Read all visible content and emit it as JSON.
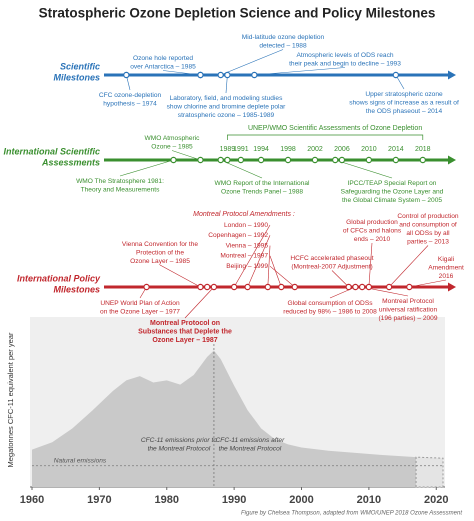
{
  "title": "Stratospheric Ozone Depletion Science and Policy Milestones",
  "timelines": [
    {
      "name": [
        "Scientific",
        "Milestones"
      ],
      "color": "#2a73b8",
      "events": [
        {
          "lines": [
            "Ozone hole reported",
            "over Antarctica – 1985"
          ],
          "year": 1985
        },
        {
          "lines": [
            "Mid-latitude ozone depletion",
            "detected – 1988"
          ],
          "year": 1988
        },
        {
          "lines": [
            "Atmospheric levels of ODS reach",
            "their peak and begin to decline – 1993"
          ],
          "year": 1993
        },
        {
          "lines": [
            "CFC ozone-depletion",
            "hypothesis – 1974"
          ],
          "year": 1974
        },
        {
          "lines": [
            "Laboratory, field, and modeling studies",
            "show chlorine and bromine deplete polar",
            "stratospheric ozone – 1985-1989"
          ],
          "years": [
            1985,
            1989
          ]
        },
        {
          "lines": [
            "Upper stratospheric ozone",
            "shows signs of increase as a result of",
            "the ODS phaseout – 2014"
          ],
          "year": 2014
        }
      ]
    },
    {
      "name": [
        "International Scientific",
        "Assessments"
      ],
      "color": "#3a8f2f",
      "header": "UNEP/WMO Scientific Assessments of Ozone Depletion",
      "assessment_years": [
        1989,
        1991,
        1994,
        1998,
        2002,
        2006,
        2010,
        2014,
        2018
      ],
      "events": [
        {
          "lines": [
            "WMO Atmospheric",
            "Ozone – 1985"
          ],
          "year": 1985
        },
        {
          "lines": [
            "WMO The Stratosphere 1981:",
            "Theory and Measurements"
          ],
          "year": 1981
        },
        {
          "lines": [
            "WMO Report of the International",
            "Ozone Trends Panel – 1988"
          ],
          "year": 1988
        },
        {
          "lines": [
            "IPCC/TEAP Special Report on",
            "Safeguarding the Ozone Layer and",
            "the Global Climate System – 2005"
          ],
          "year": 2005
        }
      ]
    },
    {
      "name": [
        "International Policy",
        "Milestones"
      ],
      "color": "#c1272d",
      "amendments_title": "Montreal Protocol Amendments :",
      "amendments": [
        {
          "label": "London – 1990",
          "year": 1990
        },
        {
          "label": "Copenhagen – 1992",
          "year": 1992
        },
        {
          "label": "Vienna – 1995",
          "year": 1995
        },
        {
          "label": "Montreal – 1997",
          "year": 1997
        },
        {
          "label": "Beijing – 1999",
          "year": 1999
        }
      ],
      "events": [
        {
          "lines": [
            "Vienna Convention for the",
            "Protection of the",
            "Ozone Layer – 1985"
          ],
          "year": 1985
        },
        {
          "lines": [
            "HCFC accelerated phaseout",
            "(Montreal-2007 Adjustment)"
          ],
          "year": 2007
        },
        {
          "lines": [
            "Global production",
            "of CFCs and halons",
            "ends – 2010"
          ],
          "year": 2010
        },
        {
          "lines": [
            "Control of production",
            "and consumption of",
            "all ODSs by all",
            "parties – 2013"
          ],
          "year": 2013
        },
        {
          "lines": [
            "Kigali",
            "Amendment",
            "2016"
          ],
          "year": 2016
        },
        {
          "lines": [
            "UNEP World Plan of Action",
            "on the Ozone Layer – 1977"
          ],
          "year": 1977
        },
        {
          "lines": [
            "Global consumption of ODSs",
            "reduced by 98% – 1986 to 2008"
          ],
          "years": [
            1986,
            2008
          ]
        },
        {
          "lines": [
            "Montreal Protocol",
            "universal ratification",
            "(196 parties) – 2009"
          ],
          "year": 2009
        },
        {
          "lines": [
            "Montreal Protocol on",
            "Substances that Deplete the",
            "Ozone Layer – 1987"
          ],
          "year": 1987
        }
      ]
    }
  ],
  "chart_data": {
    "type": "area",
    "y_label": "Megatonnes CFC-11 equivalent per year",
    "xlim": [
      1960,
      2021
    ],
    "xticks": [
      1960,
      1970,
      1980,
      1990,
      2000,
      2010,
      2020
    ],
    "ylim": [
      0,
      1.5
    ],
    "natural_emissions": {
      "label": "Natural emissions",
      "value": 0.2
    },
    "series": [
      {
        "x": [
          1960,
          1963,
          1966,
          1969,
          1972,
          1974,
          1976,
          1978,
          1980,
          1982,
          1984,
          1986,
          1987,
          1988,
          1990,
          1992,
          1994,
          1996,
          1998,
          2000,
          2004,
          2008,
          2012,
          2017
        ],
        "values": [
          0.35,
          0.42,
          0.55,
          0.72,
          0.9,
          1.0,
          1.04,
          0.98,
          1.0,
          0.96,
          1.05,
          1.22,
          1.28,
          1.2,
          0.95,
          0.72,
          0.55,
          0.45,
          0.4,
          0.37,
          0.34,
          0.32,
          0.3,
          0.28
        ],
        "color": "#c9c9c9"
      },
      {
        "x": [
          2017,
          2021
        ],
        "values": [
          0.28,
          0.27
        ],
        "color": "#e4e4e4"
      }
    ],
    "annotations": [
      [
        "CFC-11 emissions prior to",
        "the Montreal Protocol"
      ],
      [
        "CFC-11 emissions after",
        "the Montreal Protocol"
      ]
    ]
  },
  "credit": "Figure by Chelsea Thompson, adapted from WMO/UNEP 2018 Ozone Assessment"
}
